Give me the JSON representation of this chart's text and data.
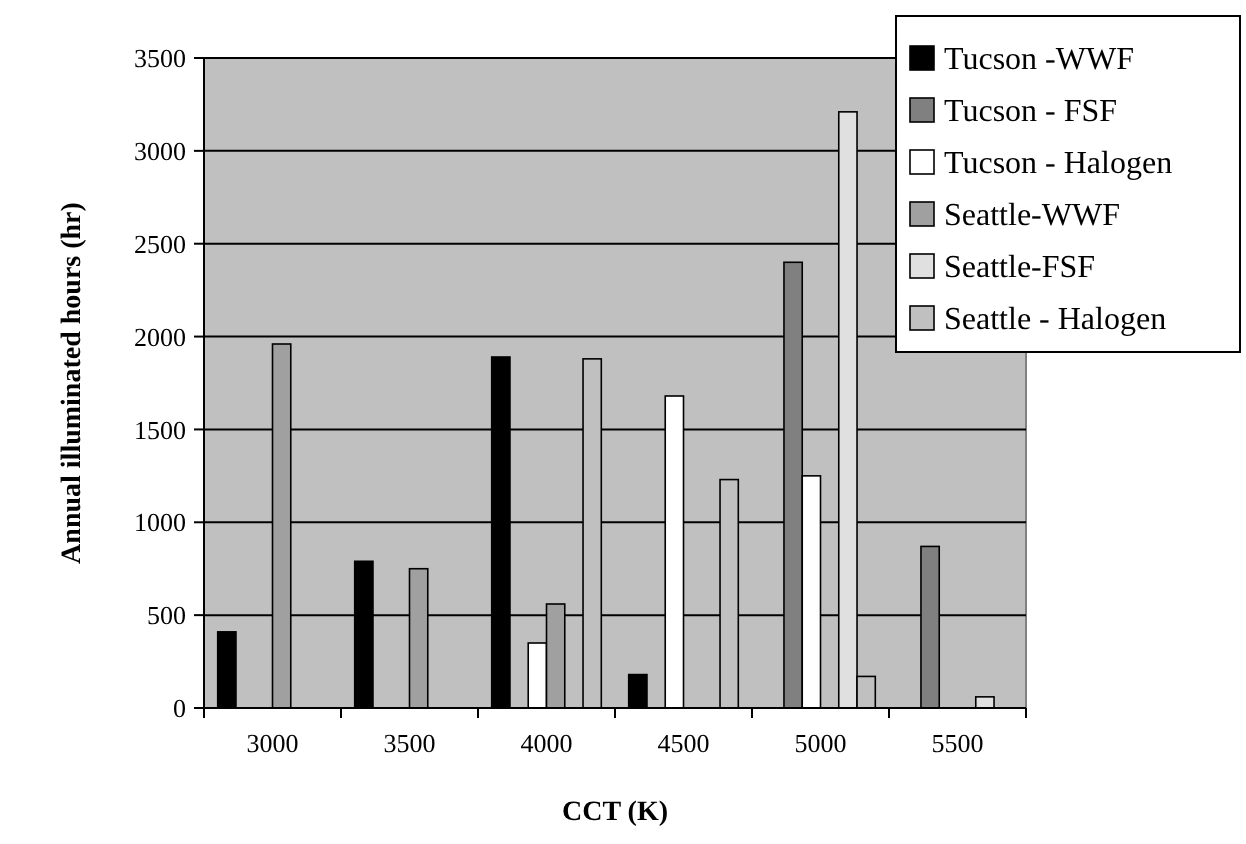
{
  "chart_data": {
    "type": "bar",
    "xlabel": "CCT (K)",
    "ylabel": "Annual illuminated hours (hr)",
    "categories": [
      "3000",
      "3500",
      "4000",
      "4500",
      "5000",
      "5500"
    ],
    "series": [
      {
        "name": "Tucson -WWF",
        "color": "#000000",
        "values": [
          410,
          790,
          1890,
          180,
          null,
          null
        ]
      },
      {
        "name": "Tucson - FSF",
        "color": "#808080",
        "values": [
          null,
          null,
          null,
          null,
          2400,
          870
        ]
      },
      {
        "name": "Tucson - Halogen",
        "color": "#ffffff",
        "values": [
          null,
          null,
          350,
          1680,
          1250,
          null
        ]
      },
      {
        "name": "Seattle-WWF",
        "color": "#a0a0a0",
        "values": [
          1960,
          750,
          560,
          null,
          null,
          null
        ]
      },
      {
        "name": "Seattle-FSF",
        "color": "#e0e0e0",
        "values": [
          null,
          null,
          null,
          null,
          3210,
          60
        ]
      },
      {
        "name": "Seattle - Halogen",
        "color": "#c0c0c0",
        "values": [
          null,
          null,
          1880,
          1230,
          170,
          null
        ]
      }
    ],
    "ylim": [
      0,
      3500
    ],
    "yticks": [
      0,
      500,
      1000,
      1500,
      2000,
      2500,
      3000,
      3500
    ],
    "grid": "y",
    "legend": "top right"
  }
}
